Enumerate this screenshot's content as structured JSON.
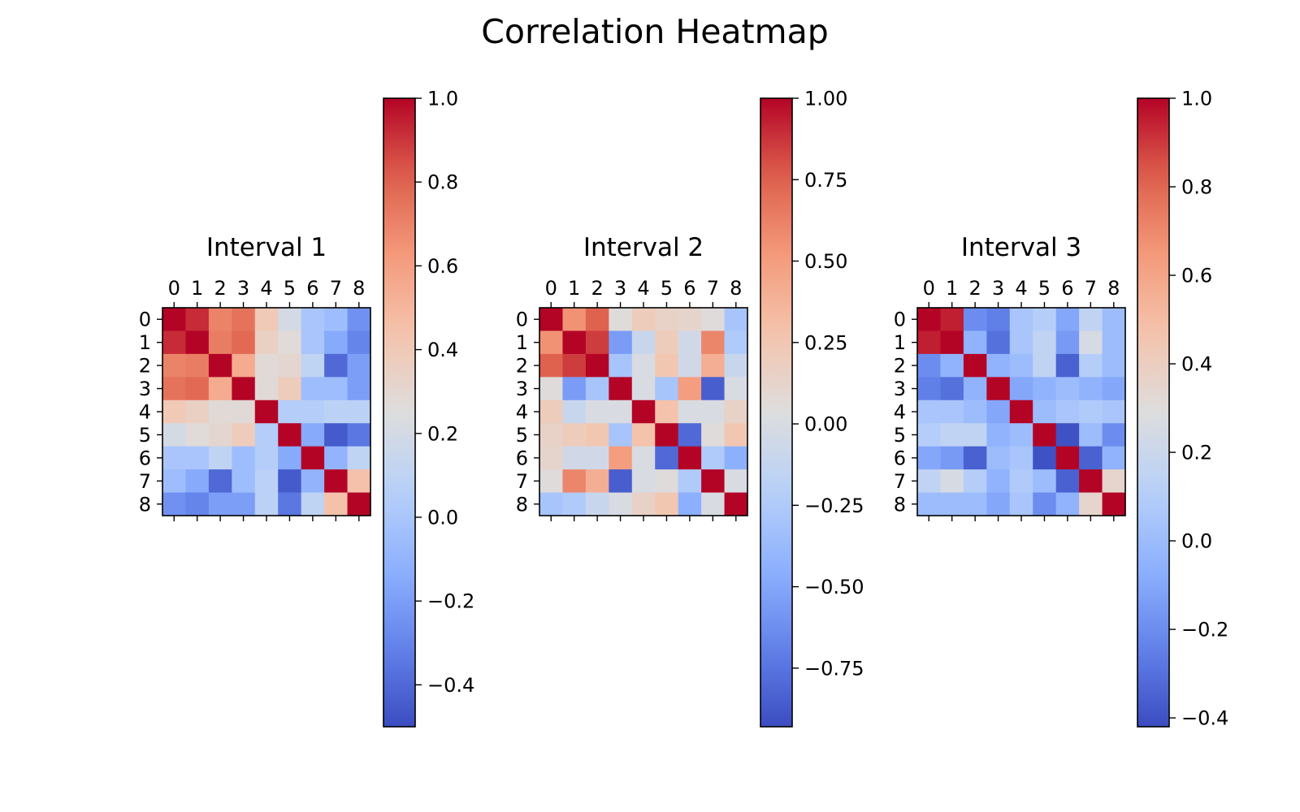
{
  "figure": {
    "title": "Correlation Heatmap"
  },
  "chart_data": [
    {
      "type": "heatmap",
      "title": "Interval 1",
      "colormap": "coolwarm",
      "xticks": [
        "0",
        "1",
        "2",
        "3",
        "4",
        "5",
        "6",
        "7",
        "8"
      ],
      "yticks": [
        "0",
        "1",
        "2",
        "3",
        "4",
        "5",
        "6",
        "7",
        "8"
      ],
      "vmin": -0.5,
      "vmax": 1.0,
      "colorbar_ticks": [
        1.0,
        0.8,
        0.6,
        0.4,
        0.2,
        0.0,
        -0.2,
        -0.4
      ],
      "colorbar_labels": [
        "1.0",
        "0.8",
        "0.6",
        "0.4",
        "0.2",
        "0.0",
        "−0.2",
        "−0.4"
      ],
      "matrix": [
        [
          1.0,
          0.92,
          0.7,
          0.75,
          0.4,
          0.2,
          0.0,
          -0.05,
          -0.25
        ],
        [
          0.92,
          1.0,
          0.72,
          0.78,
          0.35,
          0.27,
          0.0,
          -0.15,
          -0.3
        ],
        [
          0.7,
          0.72,
          1.0,
          0.55,
          0.28,
          0.3,
          0.1,
          -0.4,
          -0.2
        ],
        [
          0.75,
          0.78,
          0.55,
          1.0,
          0.28,
          0.38,
          -0.05,
          -0.05,
          -0.2
        ],
        [
          0.4,
          0.35,
          0.28,
          0.28,
          1.0,
          0.05,
          0.05,
          0.08,
          0.08
        ],
        [
          0.2,
          0.27,
          0.3,
          0.38,
          0.05,
          1.0,
          -0.15,
          -0.45,
          -0.35
        ],
        [
          0.0,
          0.0,
          0.1,
          -0.05,
          0.05,
          -0.15,
          1.0,
          -0.1,
          0.1
        ],
        [
          -0.05,
          -0.15,
          -0.4,
          -0.05,
          0.08,
          -0.45,
          -0.1,
          1.0,
          0.45
        ],
        [
          -0.25,
          -0.3,
          -0.2,
          -0.2,
          0.08,
          -0.35,
          0.1,
          0.45,
          1.0
        ]
      ]
    },
    {
      "type": "heatmap",
      "title": "Interval 2",
      "colormap": "coolwarm",
      "xticks": [
        "0",
        "1",
        "2",
        "3",
        "4",
        "5",
        "6",
        "7",
        "8"
      ],
      "yticks": [
        "0",
        "1",
        "2",
        "3",
        "4",
        "5",
        "6",
        "7",
        "8"
      ],
      "vmin": -0.93,
      "vmax": 1.0,
      "colorbar_ticks": [
        1.0,
        0.75,
        0.5,
        0.25,
        0.0,
        -0.25,
        -0.5,
        -0.75
      ],
      "colorbar_labels": [
        "1.00",
        "0.75",
        "0.50",
        "0.25",
        "0.00",
        "−0.25",
        "−0.50",
        "−0.75"
      ],
      "matrix": [
        [
          1.0,
          0.55,
          0.75,
          0.05,
          0.2,
          0.15,
          0.12,
          0.05,
          -0.3
        ],
        [
          0.55,
          1.0,
          0.85,
          -0.55,
          -0.1,
          0.2,
          -0.05,
          0.6,
          -0.25
        ],
        [
          0.75,
          0.85,
          1.0,
          -0.3,
          0.0,
          0.25,
          -0.05,
          0.4,
          -0.1
        ],
        [
          0.05,
          -0.55,
          -0.3,
          1.0,
          0.0,
          -0.3,
          0.5,
          -0.85,
          0.0
        ],
        [
          0.2,
          -0.1,
          0.0,
          0.0,
          1.0,
          0.28,
          0.0,
          0.0,
          0.15
        ],
        [
          0.15,
          0.2,
          0.25,
          -0.3,
          0.28,
          1.0,
          -0.8,
          0.05,
          0.25
        ],
        [
          0.12,
          -0.05,
          -0.05,
          0.5,
          0.0,
          -0.8,
          1.0,
          -0.25,
          -0.45
        ],
        [
          0.05,
          0.6,
          0.4,
          -0.85,
          0.0,
          0.05,
          -0.25,
          1.0,
          0.0
        ],
        [
          -0.3,
          -0.25,
          -0.1,
          0.0,
          0.15,
          0.25,
          -0.45,
          0.0,
          1.0
        ]
      ]
    },
    {
      "type": "heatmap",
      "title": "Interval 3",
      "colormap": "coolwarm",
      "xticks": [
        "0",
        "1",
        "2",
        "3",
        "4",
        "5",
        "6",
        "7",
        "8"
      ],
      "yticks": [
        "0",
        "1",
        "2",
        "3",
        "4",
        "5",
        "6",
        "7",
        "8"
      ],
      "vmin": -0.42,
      "vmax": 1.0,
      "colorbar_ticks": [
        1.0,
        0.8,
        0.6,
        0.4,
        0.2,
        0.0,
        -0.2,
        -0.4
      ],
      "colorbar_labels": [
        "1.0",
        "0.8",
        "0.6",
        "0.4",
        "0.2",
        "0.0",
        "−0.2",
        "−0.4"
      ],
      "matrix": [
        [
          1.0,
          0.95,
          -0.2,
          -0.25,
          0.05,
          0.1,
          -0.1,
          0.15,
          0.0
        ],
        [
          0.95,
          1.0,
          -0.05,
          -0.3,
          0.05,
          0.15,
          -0.15,
          0.25,
          0.0
        ],
        [
          -0.2,
          -0.05,
          1.0,
          -0.05,
          0.0,
          0.15,
          -0.35,
          0.1,
          0.0
        ],
        [
          -0.25,
          -0.3,
          -0.05,
          1.0,
          -0.1,
          -0.05,
          0.0,
          -0.05,
          -0.1
        ],
        [
          0.05,
          0.05,
          0.0,
          -0.1,
          1.0,
          0.0,
          0.05,
          0.08,
          0.05
        ],
        [
          0.1,
          0.15,
          0.15,
          -0.05,
          0.0,
          1.0,
          -0.4,
          0.0,
          -0.2
        ],
        [
          -0.1,
          -0.15,
          -0.35,
          0.0,
          0.05,
          -0.4,
          1.0,
          -0.35,
          -0.05
        ],
        [
          0.15,
          0.25,
          0.1,
          -0.05,
          0.08,
          0.0,
          -0.35,
          1.0,
          0.35
        ],
        [
          0.0,
          0.0,
          0.0,
          -0.1,
          0.05,
          -0.2,
          -0.05,
          0.35,
          1.0
        ]
      ]
    }
  ]
}
